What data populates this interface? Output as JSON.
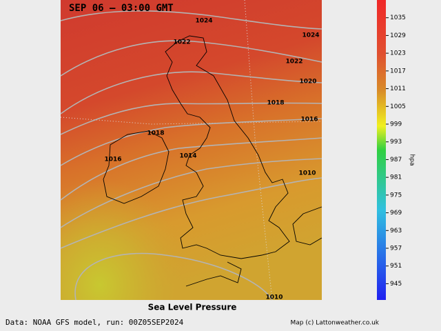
{
  "title": "SEP 06 – 03:00 GMT",
  "map_caption": "Sea Level Pressure",
  "footer": {
    "left": "Data: NOAA GFS model, run: 00Z05SEP2024",
    "right": "Map (c) Lattonweather.co.uk"
  },
  "contour_labels": [
    1024,
    1024,
    1022,
    1022,
    1020,
    1018,
    1016,
    1018,
    1016,
    1014,
    1010,
    1010
  ],
  "colorbar": {
    "label": "hpa",
    "lim": [
      939.5,
      1041
    ],
    "ticks": [
      1035,
      1029,
      1023,
      1017,
      1011,
      1005,
      999,
      993,
      987,
      981,
      975,
      969,
      963,
      957,
      951,
      945
    ]
  }
}
